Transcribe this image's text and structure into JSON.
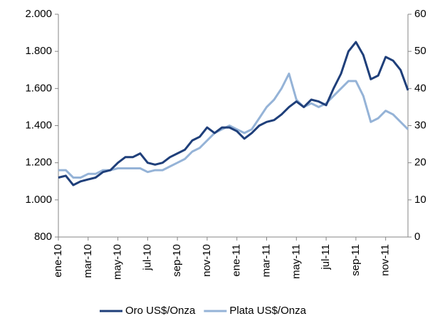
{
  "chart_data": {
    "type": "line",
    "categories": [
      "ene-10",
      null,
      null,
      null,
      "mar-10",
      null,
      null,
      null,
      "may-10",
      null,
      null,
      null,
      "jul-10",
      null,
      null,
      null,
      "sep-10",
      null,
      null,
      null,
      "nov-10",
      null,
      null,
      null,
      "ene-11",
      null,
      null,
      null,
      "mar-11",
      null,
      null,
      null,
      "may-11",
      null,
      null,
      null,
      "jul-11",
      null,
      null,
      null,
      "sep-11",
      null,
      null,
      null,
      "nov-11",
      null,
      null,
      null
    ],
    "series": [
      {
        "name": "Oro US$/Onza",
        "color": "#1f3f7a",
        "axis": "y",
        "values": [
          1120,
          1130,
          1080,
          1100,
          1110,
          1120,
          1150,
          1160,
          1200,
          1230,
          1230,
          1250,
          1200,
          1190,
          1200,
          1230,
          1250,
          1270,
          1320,
          1340,
          1390,
          1360,
          1390,
          1390,
          1370,
          1330,
          1360,
          1400,
          1420,
          1430,
          1460,
          1500,
          1530,
          1500,
          1540,
          1530,
          1510,
          1600,
          1680,
          1800,
          1850,
          1780,
          1650,
          1670,
          1770,
          1750,
          1700,
          1590
        ]
      },
      {
        "name": "Plata US$/Onza",
        "color": "#95b3d7",
        "axis": "y2",
        "values": [
          18,
          18,
          16,
          16,
          17,
          17,
          18,
          18,
          18.5,
          18.5,
          18.5,
          18.5,
          17.5,
          18,
          18,
          19,
          20,
          21,
          23,
          24,
          26,
          28,
          29,
          30,
          29,
          28,
          29,
          32,
          35,
          37,
          40,
          44,
          37,
          35,
          36,
          35,
          36,
          38,
          40,
          42,
          42,
          38,
          31,
          32,
          34,
          33,
          31,
          29
        ]
      }
    ],
    "ylim": [
      800,
      2000
    ],
    "yticks": [
      800,
      {
        "value": 1000,
        "label": "1.000"
      },
      {
        "value": 1200,
        "label": "1.200"
      },
      {
        "value": 1400,
        "label": "1.400"
      },
      {
        "value": 1600,
        "label": "1.600"
      },
      {
        "value": 1800,
        "label": "1.800"
      },
      {
        "value": 2000,
        "label": "2.000"
      }
    ],
    "y2lim": [
      0,
      60
    ],
    "y2ticks": [
      0,
      10,
      20,
      30,
      40,
      50,
      60
    ],
    "grid": false,
    "legend": "bottom"
  }
}
